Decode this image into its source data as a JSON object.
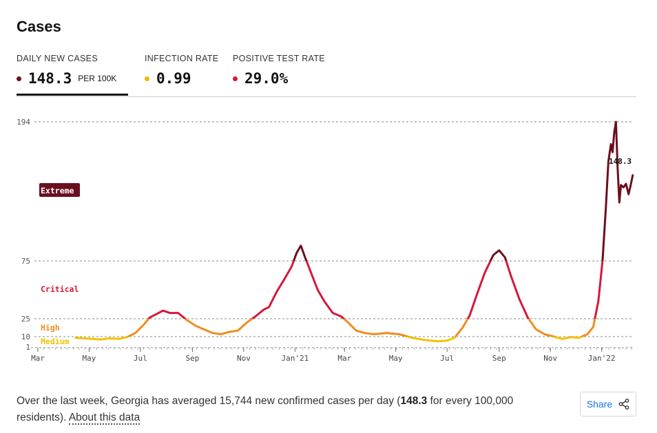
{
  "title": "Cases",
  "tabs": [
    {
      "label": "DAILY NEW CASES",
      "value": "148.3",
      "unit": "PER 100K",
      "dot_color": "#6b0f1f",
      "active": true
    },
    {
      "label": "INFECTION RATE",
      "value": "0.99",
      "unit": "",
      "dot_color": "#f2b800",
      "active": false
    },
    {
      "label": "POSITIVE TEST RATE",
      "value": "29.0%",
      "unit": "",
      "dot_color": "#d6173a",
      "active": false
    }
  ],
  "summary": {
    "before": "Over the last week, Georgia has averaged 15,744 new confirmed cases per day (",
    "highlight": "148.3",
    "after": " for every 100,000 residents). ",
    "link": "About this data"
  },
  "share_label": "Share",
  "share_icon": "share-icon",
  "chart_data": {
    "type": "line",
    "title": "",
    "xlabel": "",
    "ylabel": "",
    "y_scale": "piecewise-linear",
    "y_ticks": [
      1,
      10,
      25,
      75,
      194
    ],
    "ylim": [
      1,
      194
    ],
    "xlim": [
      "2020-03-01",
      "2022-02-08"
    ],
    "x_tick_labels": [
      {
        "date": "2020-03-01",
        "label": "Mar"
      },
      {
        "date": "2020-05-01",
        "label": "May"
      },
      {
        "date": "2020-07-01",
        "label": "Jul"
      },
      {
        "date": "2020-09-01",
        "label": "Sep"
      },
      {
        "date": "2020-11-01",
        "label": "Nov"
      },
      {
        "date": "2021-01-01",
        "label": "Jan'21"
      },
      {
        "date": "2021-03-01",
        "label": "Mar"
      },
      {
        "date": "2021-05-01",
        "label": "May"
      },
      {
        "date": "2021-07-01",
        "label": "Jul"
      },
      {
        "date": "2021-09-01",
        "label": "Sep"
      },
      {
        "date": "2021-11-01",
        "label": "Nov"
      },
      {
        "date": "2022-01-01",
        "label": "Jan'22"
      }
    ],
    "risk_levels": [
      {
        "label": "Extreme",
        "color": "#6b0f1f",
        "threshold": 75
      },
      {
        "label": "Critical",
        "color": "#d6173a",
        "threshold": 25
      },
      {
        "label": "High",
        "color": "#f08c1e",
        "threshold": 10
      },
      {
        "label": "Medium",
        "color": "#f2c200",
        "threshold": 1
      }
    ],
    "grid": true,
    "last_value_label": "148.3",
    "series": [
      {
        "points": [
          [
            "2020-04-15",
            9
          ],
          [
            "2020-04-25",
            8.5
          ],
          [
            "2020-05-05",
            8
          ],
          [
            "2020-05-15",
            7.5
          ],
          [
            "2020-05-25",
            8.5
          ],
          [
            "2020-06-05",
            8
          ],
          [
            "2020-06-15",
            9.5
          ],
          [
            "2020-06-25",
            13
          ],
          [
            "2020-07-05",
            20
          ],
          [
            "2020-07-12",
            26
          ],
          [
            "2020-07-20",
            29
          ],
          [
            "2020-07-28",
            32
          ],
          [
            "2020-08-05",
            30
          ],
          [
            "2020-08-15",
            30
          ],
          [
            "2020-08-25",
            24
          ],
          [
            "2020-09-05",
            19
          ],
          [
            "2020-09-15",
            16
          ],
          [
            "2020-09-25",
            13
          ],
          [
            "2020-10-05",
            12
          ],
          [
            "2020-10-15",
            14
          ],
          [
            "2020-10-25",
            15
          ],
          [
            "2020-11-05",
            22
          ],
          [
            "2020-11-15",
            27
          ],
          [
            "2020-11-25",
            33
          ],
          [
            "2020-12-01",
            35
          ],
          [
            "2020-12-10",
            48
          ],
          [
            "2020-12-20",
            60
          ],
          [
            "2020-12-28",
            70
          ],
          [
            "2021-01-03",
            82
          ],
          [
            "2021-01-08",
            88
          ],
          [
            "2021-01-13",
            78
          ],
          [
            "2021-01-20",
            65
          ],
          [
            "2021-01-28",
            50
          ],
          [
            "2021-02-05",
            40
          ],
          [
            "2021-02-15",
            30
          ],
          [
            "2021-02-25",
            27
          ],
          [
            "2021-03-05",
            22
          ],
          [
            "2021-03-15",
            15
          ],
          [
            "2021-03-25",
            13
          ],
          [
            "2021-04-05",
            12
          ],
          [
            "2021-04-20",
            13
          ],
          [
            "2021-05-05",
            12
          ],
          [
            "2021-05-20",
            9
          ],
          [
            "2021-06-05",
            7
          ],
          [
            "2021-06-20",
            6
          ],
          [
            "2021-07-01",
            6.5
          ],
          [
            "2021-07-10",
            9
          ],
          [
            "2021-07-20",
            18
          ],
          [
            "2021-07-28",
            28
          ],
          [
            "2021-08-05",
            45
          ],
          [
            "2021-08-15",
            65
          ],
          [
            "2021-08-25",
            80
          ],
          [
            "2021-09-01",
            84
          ],
          [
            "2021-09-08",
            78
          ],
          [
            "2021-09-15",
            62
          ],
          [
            "2021-09-25",
            42
          ],
          [
            "2021-10-05",
            26
          ],
          [
            "2021-10-15",
            16
          ],
          [
            "2021-10-25",
            12
          ],
          [
            "2021-11-05",
            10
          ],
          [
            "2021-11-15",
            8
          ],
          [
            "2021-11-25",
            9.5
          ],
          [
            "2021-12-05",
            9
          ],
          [
            "2021-12-15",
            12
          ],
          [
            "2021-12-22",
            18
          ],
          [
            "2021-12-28",
            40
          ],
          [
            "2022-01-02",
            75
          ],
          [
            "2022-01-06",
            120
          ],
          [
            "2022-01-09",
            160
          ],
          [
            "2022-01-12",
            175
          ],
          [
            "2022-01-14",
            168
          ],
          [
            "2022-01-16",
            185
          ],
          [
            "2022-01-18",
            194
          ],
          [
            "2022-01-20",
            155
          ],
          [
            "2022-01-22",
            125
          ],
          [
            "2022-01-24",
            140
          ],
          [
            "2022-01-27",
            138
          ],
          [
            "2022-01-30",
            141
          ],
          [
            "2022-02-02",
            132
          ],
          [
            "2022-02-04",
            138
          ],
          [
            "2022-02-07",
            148.3
          ]
        ]
      }
    ]
  }
}
